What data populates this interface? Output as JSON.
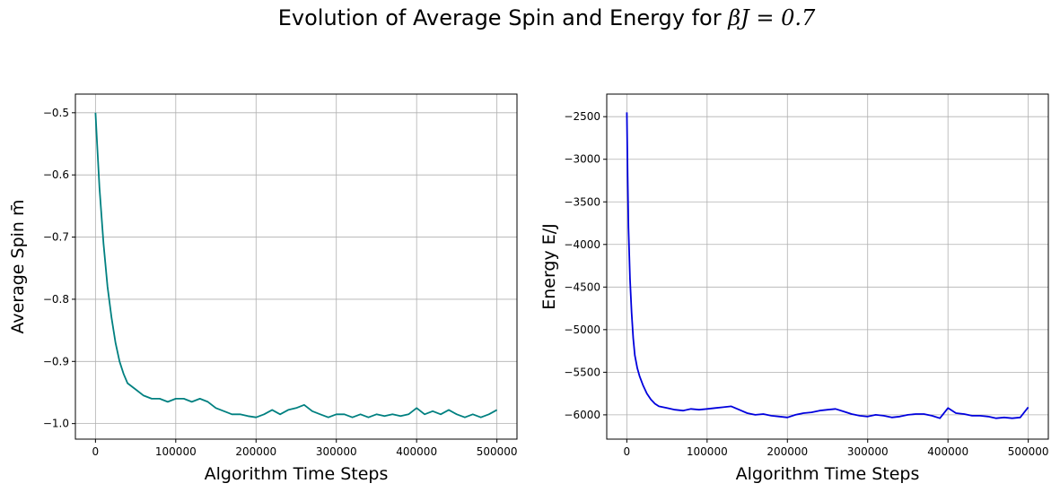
{
  "figure": {
    "title_prefix": "Evolution of Average Spin and Energy for ",
    "title_math": "βJ = 0.7"
  },
  "chart_data": [
    {
      "type": "line",
      "title": "",
      "xlabel": "Algorithm Time Steps",
      "ylabel": "Average Spin m̄",
      "xlim": [
        -25000,
        525000
      ],
      "ylim": [
        -1.025,
        -0.47
      ],
      "xticks": [
        0,
        100000,
        200000,
        300000,
        400000,
        500000
      ],
      "yticks": [
        -1.0,
        -0.9,
        -0.8,
        -0.7,
        -0.6,
        -0.5
      ],
      "xtick_labels": [
        "0",
        "100000",
        "200000",
        "300000",
        "400000",
        "500000"
      ],
      "ytick_labels": [
        "−1.0",
        "−0.9",
        "−0.8",
        "−0.7",
        "−0.6",
        "−0.5"
      ],
      "grid": true,
      "color": "#008080",
      "series": [
        {
          "x": [
            0,
            2000,
            5000,
            10000,
            15000,
            20000,
            25000,
            30000,
            35000,
            40000,
            50000,
            60000,
            70000,
            80000,
            90000,
            100000,
            110000,
            120000,
            130000,
            140000,
            150000,
            160000,
            170000,
            180000,
            190000,
            200000,
            210000,
            220000,
            230000,
            240000,
            250000,
            260000,
            270000,
            280000,
            290000,
            300000,
            310000,
            320000,
            330000,
            340000,
            350000,
            360000,
            370000,
            380000,
            390000,
            400000,
            410000,
            420000,
            430000,
            440000,
            450000,
            460000,
            470000,
            480000,
            490000,
            500000
          ],
          "y": [
            -0.5,
            -0.55,
            -0.62,
            -0.71,
            -0.78,
            -0.83,
            -0.87,
            -0.9,
            -0.92,
            -0.935,
            -0.945,
            -0.955,
            -0.96,
            -0.96,
            -0.965,
            -0.96,
            -0.96,
            -0.965,
            -0.96,
            -0.965,
            -0.975,
            -0.98,
            -0.985,
            -0.985,
            -0.988,
            -0.99,
            -0.985,
            -0.978,
            -0.985,
            -0.978,
            -0.975,
            -0.97,
            -0.98,
            -0.985,
            -0.99,
            -0.985,
            -0.985,
            -0.99,
            -0.985,
            -0.99,
            -0.985,
            -0.988,
            -0.985,
            -0.988,
            -0.985,
            -0.975,
            -0.985,
            -0.98,
            -0.985,
            -0.978,
            -0.985,
            -0.99,
            -0.985,
            -0.99,
            -0.985,
            -0.978
          ]
        }
      ]
    },
    {
      "type": "line",
      "title": "",
      "xlabel": "Algorithm Time Steps",
      "ylabel": "Energy E/J",
      "xlim": [
        -25000,
        525000
      ],
      "ylim": [
        -6285,
        -2235
      ],
      "xticks": [
        0,
        100000,
        200000,
        300000,
        400000,
        500000
      ],
      "yticks": [
        -6000,
        -5500,
        -5000,
        -4500,
        -4000,
        -3500,
        -3000,
        -2500
      ],
      "xtick_labels": [
        "0",
        "100000",
        "200000",
        "300000",
        "400000",
        "500000"
      ],
      "ytick_labels": [
        "−6000",
        "−5500",
        "−5000",
        "−4500",
        "−4000",
        "−3500",
        "−3000",
        "−2500"
      ],
      "grid": true,
      "color": "#0000dd",
      "series": [
        {
          "x": [
            0,
            1000,
            2000,
            4000,
            6000,
            8000,
            10000,
            13000,
            16000,
            20000,
            25000,
            30000,
            35000,
            40000,
            50000,
            60000,
            70000,
            80000,
            90000,
            100000,
            110000,
            120000,
            130000,
            140000,
            150000,
            160000,
            170000,
            180000,
            190000,
            200000,
            210000,
            220000,
            230000,
            240000,
            250000,
            260000,
            270000,
            280000,
            290000,
            300000,
            310000,
            320000,
            330000,
            340000,
            350000,
            360000,
            370000,
            380000,
            390000,
            400000,
            410000,
            420000,
            430000,
            440000,
            450000,
            460000,
            470000,
            480000,
            490000,
            500000
          ],
          "y": [
            -2450,
            -3200,
            -3800,
            -4400,
            -4800,
            -5100,
            -5300,
            -5450,
            -5550,
            -5650,
            -5750,
            -5820,
            -5870,
            -5900,
            -5920,
            -5940,
            -5950,
            -5930,
            -5940,
            -5930,
            -5920,
            -5910,
            -5900,
            -5940,
            -5980,
            -6000,
            -5990,
            -6010,
            -6020,
            -6030,
            -6000,
            -5980,
            -5970,
            -5950,
            -5940,
            -5930,
            -5960,
            -5990,
            -6010,
            -6020,
            -6000,
            -6010,
            -6030,
            -6020,
            -6000,
            -5990,
            -5990,
            -6010,
            -6040,
            -5920,
            -5980,
            -5990,
            -6010,
            -6010,
            -6020,
            -6040,
            -6030,
            -6040,
            -6030,
            -5910
          ]
        }
      ]
    }
  ]
}
